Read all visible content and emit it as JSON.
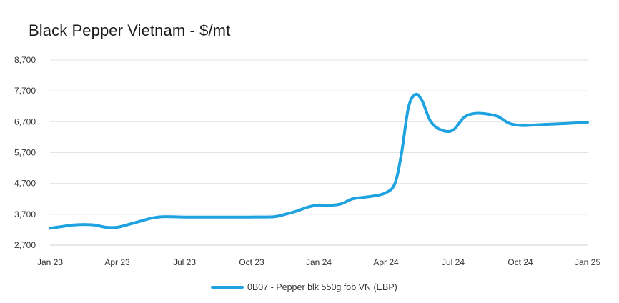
{
  "chart_data": {
    "type": "line",
    "title": "Black Pepper Vietnam - $/mt",
    "xlabel": "",
    "ylabel": "",
    "x_ticks": [
      "Jan 23",
      "Apr 23",
      "Jul 23",
      "Oct 23",
      "Jan 24",
      "Apr 24",
      "Jul 24",
      "Oct 24",
      "Jan 25"
    ],
    "y_ticks": [
      "8,700",
      "7,700",
      "6,700",
      "5,700",
      "4,700",
      "3,700",
      "2,700"
    ],
    "ylim": [
      2700,
      8700
    ],
    "xlim_months": [
      0,
      24
    ],
    "grid": true,
    "legend_position": "bottom",
    "color": "#1ea3e0",
    "series": [
      {
        "name": "0B07 - Pepper blk 550g fob VN (EBP)",
        "x_months": [
          0,
          0.5,
          1,
          1.5,
          2,
          2.5,
          3,
          3.5,
          4,
          4.5,
          5,
          5.5,
          6,
          7,
          8,
          9,
          10,
          10.5,
          11,
          11.5,
          12,
          12.5,
          13,
          13.5,
          14,
          14.5,
          15,
          15.4,
          15.7,
          16,
          16.3,
          16.6,
          17,
          17.5,
          18,
          18.5,
          19,
          19.5,
          20,
          20.5,
          21,
          21.5,
          22,
          23,
          24
        ],
        "values": [
          3250,
          3300,
          3350,
          3370,
          3350,
          3280,
          3280,
          3370,
          3470,
          3570,
          3620,
          3620,
          3610,
          3610,
          3610,
          3610,
          3620,
          3700,
          3800,
          3930,
          4000,
          3990,
          4040,
          4200,
          4250,
          4300,
          4400,
          4700,
          5700,
          7150,
          7580,
          7400,
          6700,
          6420,
          6430,
          6850,
          6970,
          6950,
          6870,
          6650,
          6580,
          6590,
          6610,
          6640,
          6680
        ]
      }
    ]
  }
}
